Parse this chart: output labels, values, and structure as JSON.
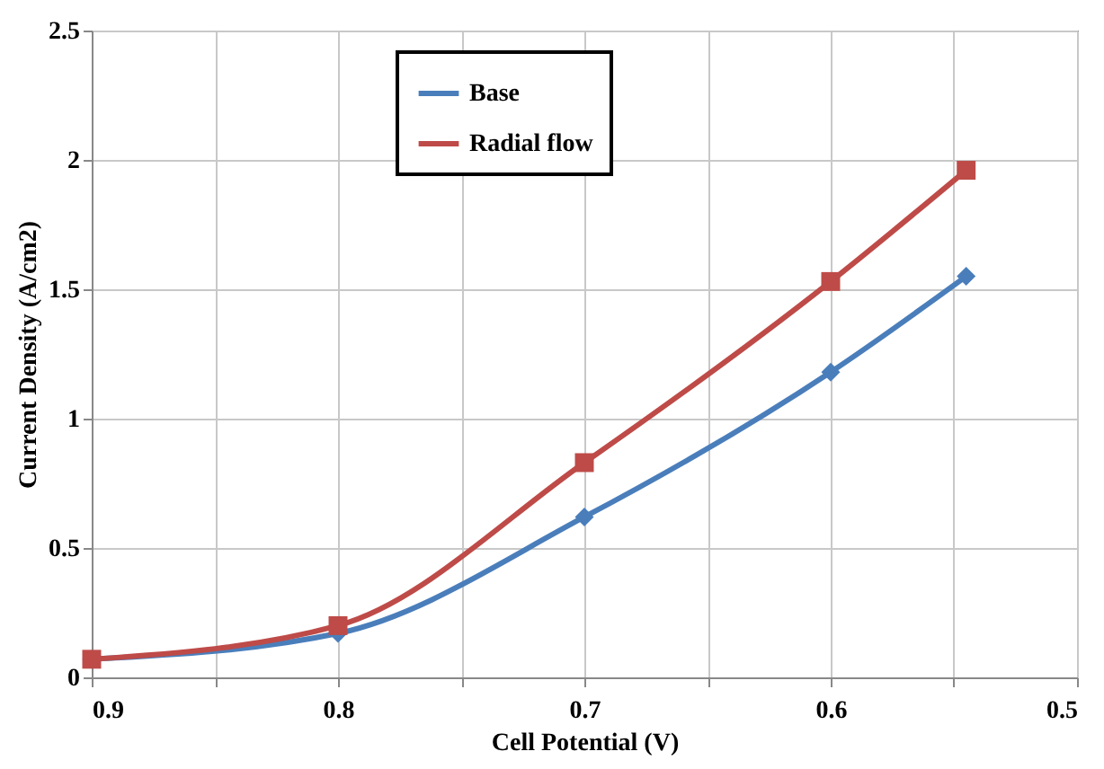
{
  "chart_data": {
    "type": "line",
    "xlabel": "Cell Potential (V)",
    "ylabel": "Current Density (A/cm2)",
    "x": [
      0.9,
      0.8,
      0.7,
      0.6,
      0.545
    ],
    "series": [
      {
        "name": "Base",
        "color": "#4a7ebb",
        "marker": "diamond",
        "values": [
          0.07,
          0.17,
          0.62,
          1.18,
          1.55
        ]
      },
      {
        "name": "Radial flow",
        "color": "#be4b48",
        "marker": "square",
        "values": [
          0.07,
          0.2,
          0.83,
          1.53,
          1.96
        ]
      }
    ],
    "xlim": [
      0.9,
      0.5
    ],
    "xticks": [
      0.9,
      {
        "value": 0.85,
        "label": null
      },
      0.8,
      {
        "value": 0.75,
        "label": null
      },
      0.7,
      {
        "value": 0.65,
        "label": null
      },
      0.6,
      {
        "value": 0.55,
        "label": null
      },
      0.5
    ],
    "ylim": [
      0,
      2.5
    ],
    "yticks": [
      0,
      0.5,
      1,
      1.5,
      2,
      2.5
    ],
    "grid": true,
    "legend": "top",
    "line_style": "solid"
  }
}
